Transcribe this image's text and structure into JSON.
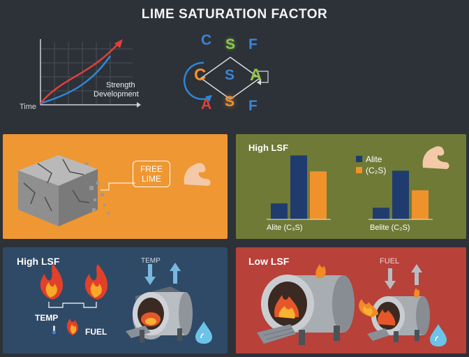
{
  "title": "LIME SATURATION FACTOR",
  "header": {
    "axis_time": "Time",
    "curve_label_line1": "Strength",
    "curve_label_line2": "Development",
    "letters": {
      "top_c": "C",
      "top_s": "S",
      "top_f": "F",
      "mid_c": "C",
      "mid_s": "S",
      "mid_a": "A",
      "bot_a": "A",
      "bot_s": "S",
      "bot_f": "F"
    }
  },
  "panel_free_lime": {
    "label_line1": "FREE",
    "label_line2": "LIME",
    "icon": "flexed-arm-icon"
  },
  "panel_high_lsf_chart": {
    "title": "High LSF",
    "legend": [
      "Alite",
      "(C₂S)"
    ],
    "group_labels": [
      "Alite (C₃S)",
      "Belite (C₂S)"
    ],
    "colors": {
      "alite": "#203c6e",
      "belite": "#f0922b"
    },
    "icon": "flexed-arm-icon"
  },
  "chart_data": {
    "type": "bar",
    "categories": [
      "Alite (C₃S)",
      "Belite (C₂S)"
    ],
    "series": [
      {
        "name": "Alite",
        "values": [
          [
            22,
            88
          ],
          [
            16,
            67
          ]
        ]
      },
      {
        "name": "(C₂S)",
        "values": [
          [
            66
          ],
          [
            40
          ]
        ]
      }
    ],
    "ylim": [
      0,
      100
    ]
  },
  "panel_high_lsf_kiln": {
    "title": "High LSF",
    "temp_label": "TEMP",
    "temp_label_small": "TEMP",
    "fuel_label": "FUEL",
    "icons": [
      "flame-icon",
      "kiln-icon",
      "water-drop-icon",
      "up-arrow-icon",
      "down-arrow-icon",
      "thermometer-icon"
    ]
  },
  "panel_low_lsf": {
    "title": "Low LSF",
    "fuel_label": "FUEL",
    "icons": [
      "kiln-icon",
      "flame-icon",
      "water-drop-icon",
      "up-arrow-icon",
      "down-arrow-icon"
    ]
  }
}
